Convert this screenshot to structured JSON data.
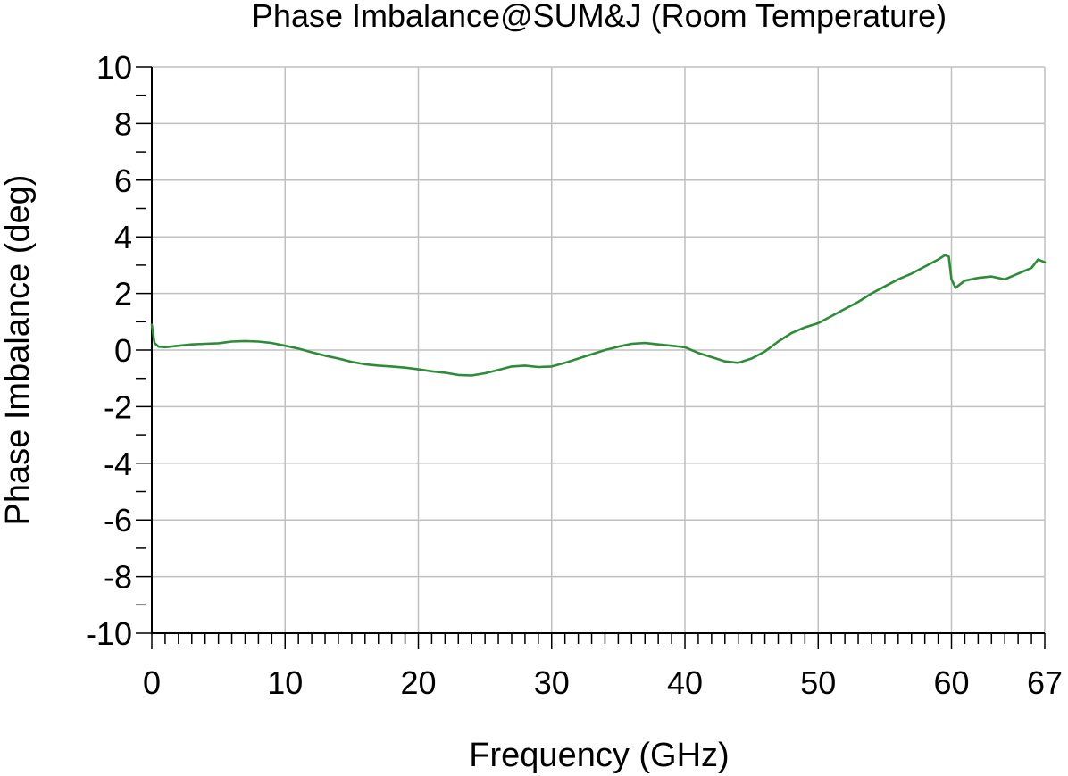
{
  "chart_data": {
    "type": "line",
    "title": "Phase Imbalance@SUM&J (Room Temperature)",
    "xlabel": "Frequency (GHz)",
    "ylabel": "Phase Imbalance (deg)",
    "xlim": [
      0,
      67
    ],
    "ylim": [
      -10,
      10
    ],
    "x_ticks": [
      0,
      10,
      20,
      30,
      40,
      50,
      60,
      67
    ],
    "x_tick_labels": [
      "0",
      "10",
      "20",
      "30",
      "40",
      "50",
      "60",
      "67"
    ],
    "y_ticks": [
      10,
      8,
      6,
      4,
      2,
      0,
      -2,
      -4,
      -6,
      -8,
      -10
    ],
    "y_tick_labels": [
      "10",
      "8",
      "6",
      "4",
      "2",
      "0",
      "-2",
      "-4",
      "-6",
      "-8",
      "-10"
    ],
    "x_minor_step": 1,
    "y_minor_step": 1,
    "grid": true,
    "series": [
      {
        "color": "#2e8b3a",
        "x": [
          0,
          0.2,
          0.5,
          1,
          2,
          3,
          4,
          5,
          6,
          7,
          8,
          9,
          10,
          11,
          12,
          13,
          14,
          15,
          16,
          17,
          18,
          19,
          20,
          21,
          22,
          23,
          24,
          25,
          26,
          27,
          28,
          29,
          30,
          31,
          32,
          33,
          34,
          35,
          36,
          37,
          38,
          39,
          40,
          41,
          42,
          43,
          44,
          45,
          46,
          47,
          48,
          49,
          50,
          51,
          52,
          53,
          54,
          55,
          56,
          57,
          58,
          59,
          59.5,
          59.8,
          60,
          60.3,
          61,
          62,
          63,
          64,
          65,
          66,
          66.5,
          67
        ],
        "values": [
          0.9,
          0.25,
          0.12,
          0.1,
          0.15,
          0.2,
          0.22,
          0.24,
          0.3,
          0.32,
          0.3,
          0.25,
          0.15,
          0.05,
          -0.08,
          -0.2,
          -0.3,
          -0.42,
          -0.5,
          -0.55,
          -0.58,
          -0.62,
          -0.68,
          -0.75,
          -0.8,
          -0.88,
          -0.9,
          -0.82,
          -0.7,
          -0.58,
          -0.55,
          -0.6,
          -0.58,
          -0.45,
          -0.3,
          -0.15,
          0.0,
          0.12,
          0.22,
          0.25,
          0.2,
          0.15,
          0.1,
          -0.1,
          -0.25,
          -0.4,
          -0.45,
          -0.3,
          -0.05,
          0.3,
          0.6,
          0.8,
          0.95,
          1.2,
          1.45,
          1.7,
          2.0,
          2.25,
          2.5,
          2.7,
          2.95,
          3.2,
          3.35,
          3.3,
          2.5,
          2.2,
          2.45,
          2.55,
          2.6,
          2.5,
          2.7,
          2.9,
          3.2,
          3.1
        ]
      }
    ]
  }
}
